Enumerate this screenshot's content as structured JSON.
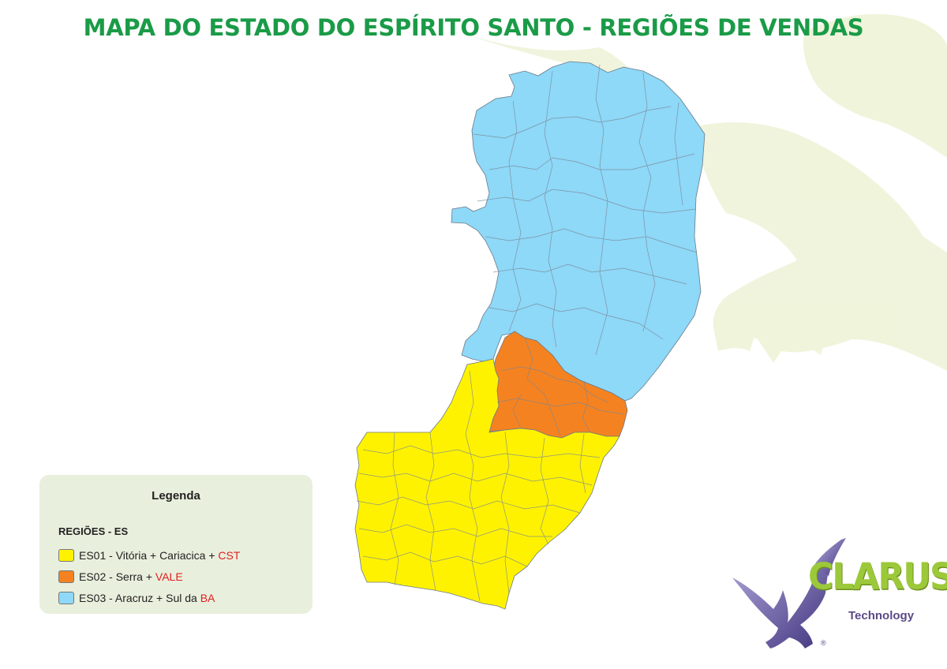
{
  "title": "MAPA DO ESTADO DO ESPÍRITO SANTO - REGIÕES DE VENDAS",
  "legend": {
    "heading": "Legenda",
    "subtitle": "REGIÕES - ES",
    "items": [
      {
        "prefix": "ES01 - Vitória + Cariacica + ",
        "accent": "CST",
        "color": "#fff200"
      },
      {
        "prefix": "ES02 - Serra + ",
        "accent": "VALE",
        "color": "#f58220"
      },
      {
        "prefix": "ES03 - Aracruz + Sul da ",
        "accent": "BA",
        "color": "#8ed8f8"
      }
    ]
  },
  "logo": {
    "brand": "CLARUS",
    "tagline": "Technology",
    "mark": "®"
  },
  "colors": {
    "title": "#1a9b47",
    "accent_text": "#e02020",
    "region_es01": "#fff200",
    "region_es02": "#f58220",
    "region_es03": "#8ed8f8",
    "border": "#6b7a86",
    "legend_bg": "#e9efdd"
  },
  "icons": {
    "watermark": "eagle-watermark-icon",
    "logo": "eagle-logo-icon"
  }
}
